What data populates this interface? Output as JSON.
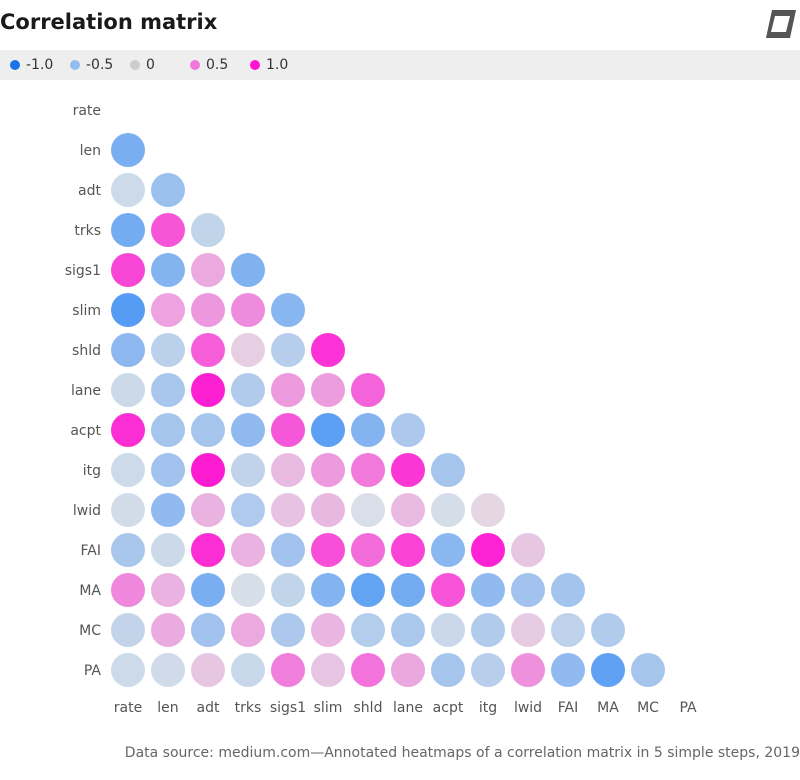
{
  "title": "Correlation matrix",
  "source": "Data source: medium.com—Annotated heatmaps of a correlation matrix in 5 simple steps, 2019",
  "logo_icon": "leaf-logo-icon",
  "legend": [
    {
      "label": "-1.0",
      "value": -1.0
    },
    {
      "label": "-0.5",
      "value": -0.5
    },
    {
      "label": "0",
      "value": 0
    },
    {
      "label": "0.5",
      "value": 0.5
    },
    {
      "label": "1.0",
      "value": 1.0
    }
  ],
  "colors": {
    "negative": "#1a73e8",
    "neutral": "#cccccc",
    "positive": "#ff00cc",
    "legend_bg": "#eeeeef"
  },
  "chart_data": {
    "type": "heatmap",
    "title": "Correlation matrix",
    "shape": "lower-triangle circles",
    "color_scale": [
      -1.0,
      0,
      1.0
    ],
    "variables": [
      "rate",
      "len",
      "adt",
      "trks",
      "sigs1",
      "slim",
      "shld",
      "lane",
      "acpt",
      "itg",
      "lwid",
      "FAI",
      "MA",
      "MC",
      "PA"
    ],
    "values": [
      [],
      [
        -0.68
      ],
      [
        -0.1,
        -0.44
      ],
      [
        -0.71,
        0.67,
        -0.18
      ],
      [
        0.74,
        -0.6,
        0.25,
        -0.63
      ],
      [
        -0.92,
        0.28,
        0.34,
        0.4,
        -0.58
      ],
      [
        -0.55,
        -0.23,
        0.63,
        0.06,
        -0.26,
        0.85
      ],
      [
        -0.11,
        -0.35,
        0.94,
        -0.3,
        0.33,
        0.31,
        0.6
      ],
      [
        0.87,
        -0.38,
        -0.37,
        -0.53,
        0.66,
        -0.88,
        -0.6,
        -0.33
      ],
      [
        -0.1,
        -0.41,
        0.96,
        -0.19,
        0.16,
        0.33,
        0.49,
        0.83,
        -0.37
      ],
      [
        -0.07,
        -0.52,
        0.2,
        -0.31,
        0.12,
        0.17,
        -0.03,
        0.16,
        -0.05,
        0.02
      ],
      [
        -0.35,
        -0.11,
        0.87,
        0.2,
        -0.41,
        0.7,
        0.55,
        0.77,
        -0.56,
        0.93,
        0.1
      ],
      [
        0.42,
        0.2,
        -0.68,
        -0.04,
        -0.18,
        -0.61,
        -0.83,
        -0.72,
        0.68,
        -0.52,
        -0.4,
        -0.39
      ],
      [
        -0.17,
        0.23,
        -0.41,
        0.25,
        -0.33,
        0.18,
        -0.27,
        -0.34,
        -0.12,
        -0.3,
        0.07,
        -0.2,
        -0.3
      ],
      [
        -0.1,
        -0.08,
        0.1,
        -0.13,
        0.46,
        0.11,
        0.52,
        0.26,
        -0.37,
        -0.25,
        0.37,
        -0.52,
        -0.85,
        -0.37
      ]
    ]
  }
}
